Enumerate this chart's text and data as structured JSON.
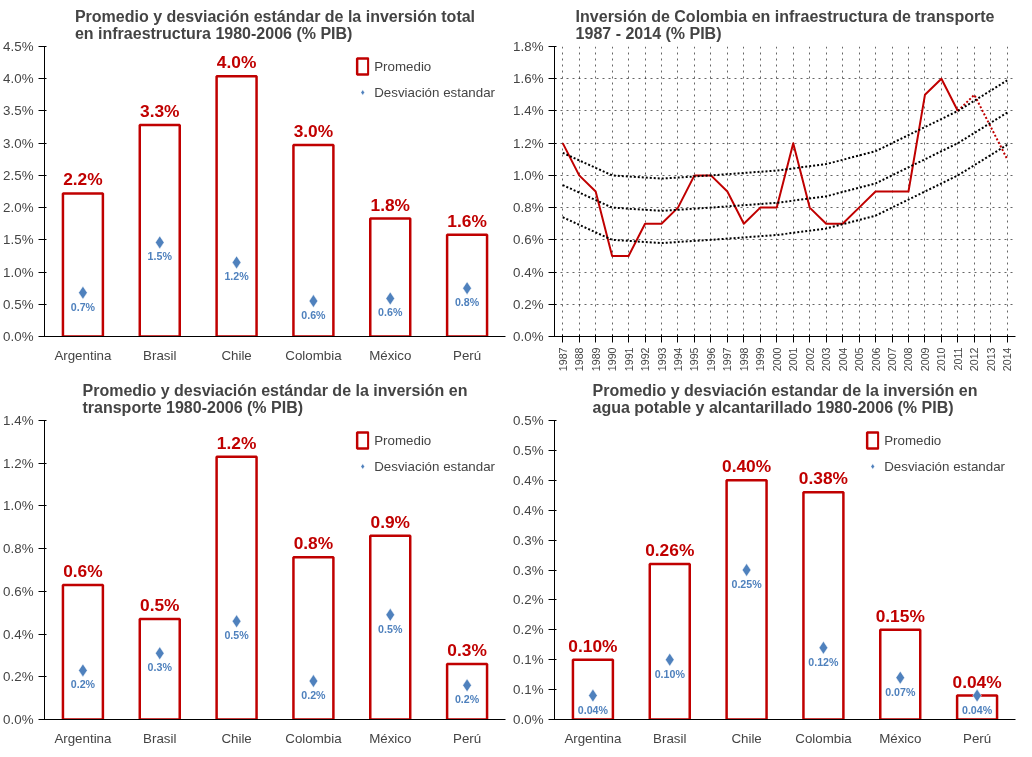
{
  "chart_data": [
    {
      "type": "bar",
      "title": "Promedio y desviación estándar de la inversión total\nen infraestructura 1980-2006 (% PIB)",
      "categories": [
        "Argentina",
        "Brasil",
        "Chile",
        "Colombia",
        "México",
        "Perú"
      ],
      "ylim": [
        0,
        4.5
      ],
      "yticks": [
        {
          "value": 0,
          "label": "0.0%"
        },
        {
          "value": 0.5,
          "label": "0.5%"
        },
        {
          "value": 1,
          "label": "1.0%"
        },
        {
          "value": 1.5,
          "label": "1.5%"
        },
        {
          "value": 2,
          "label": "2.0%"
        },
        {
          "value": 2.5,
          "label": "2.5%"
        },
        {
          "value": 3,
          "label": "3.0%"
        },
        {
          "value": 3.5,
          "label": "3.5%"
        },
        {
          "value": 4,
          "label": "4.0%"
        },
        {
          "value": 4.5,
          "label": "4.5%"
        }
      ],
      "legend": "top right",
      "series": [
        {
          "name": "Promedio",
          "type": "bar",
          "color": "#c00000",
          "values": [
            2.22,
            3.28,
            4.04,
            2.97,
            1.83,
            1.58
          ],
          "value_labels": [
            "2.2%",
            "3.3%",
            "4.0%",
            "3.0%",
            "1.8%",
            "1.6%"
          ]
        },
        {
          "name": "Desviación estandar",
          "type": "scatter",
          "marker": "diamond",
          "color": "#4f81bd",
          "values": [
            0.68,
            1.46,
            1.15,
            0.55,
            0.59,
            0.75
          ],
          "value_labels": [
            "0.7%",
            "1.5%",
            "1.2%",
            "0.6%",
            "0.6%",
            "0.8%"
          ]
        }
      ]
    },
    {
      "type": "line",
      "title": "Inversión de Colombia en infraestructura de transporte\n1987 - 2014 (% PIB)",
      "xlim": [
        1986.5,
        2014.5
      ],
      "xticks": [
        1987,
        1988,
        1989,
        1990,
        1991,
        1992,
        1993,
        1994,
        1995,
        1996,
        1997,
        1998,
        1999,
        2000,
        2001,
        2002,
        2003,
        2004,
        2005,
        2006,
        2007,
        2008,
        2009,
        2010,
        2011,
        2012,
        2013,
        2014
      ],
      "ylim": [
        0,
        1.8
      ],
      "yticks": [
        {
          "value": 0,
          "label": "0.0%"
        },
        {
          "value": 0.2,
          "label": "0.2%"
        },
        {
          "value": 0.4,
          "label": "0.4%"
        },
        {
          "value": 0.6,
          "label": "0.6%"
        },
        {
          "value": 0.8,
          "label": "0.8%"
        },
        {
          "value": 1,
          "label": "1.0%"
        },
        {
          "value": 1.2,
          "label": "1.2%"
        },
        {
          "value": 1.4,
          "label": "1.4%"
        },
        {
          "value": 1.6,
          "label": "1.6%"
        },
        {
          "value": 1.8,
          "label": "1.8%"
        }
      ],
      "grid": true,
      "series": [
        {
          "color": "#c00000",
          "line_style": "solid",
          "x": [
            1987,
            1988,
            1989,
            1990,
            1991,
            1992,
            1993,
            1994,
            1995,
            1996,
            1997,
            1998,
            1999,
            2000,
            2001,
            2002,
            2003,
            2004,
            2005,
            2006,
            2007,
            2008,
            2009,
            2010,
            2011
          ],
          "values": [
            1.2,
            1.0,
            0.9,
            0.5,
            0.5,
            0.7,
            0.7,
            0.8,
            1.0,
            1.0,
            0.9,
            0.7,
            0.8,
            0.8,
            1.2,
            0.8,
            0.7,
            0.7,
            0.8,
            0.9,
            0.9,
            0.9,
            1.5,
            1.6,
            1.4
          ]
        },
        {
          "color": "#c00000",
          "line_style": "dotted",
          "x": [
            2011,
            2012,
            2013,
            2014
          ],
          "values": [
            1.4,
            1.5,
            1.3,
            1.1
          ]
        },
        {
          "color": "#000000",
          "line_style": "dotted",
          "x": [
            1987,
            1990,
            1993,
            1996,
            2000,
            2003,
            2006,
            2009,
            2011,
            2014
          ],
          "values": [
            1.14,
            1.0,
            0.98,
            1.0,
            1.03,
            1.07,
            1.15,
            1.3,
            1.4,
            1.59
          ]
        },
        {
          "color": "#000000",
          "line_style": "dotted",
          "x": [
            1987,
            1990,
            1993,
            1996,
            2000,
            2003,
            2006,
            2009,
            2011,
            2014
          ],
          "values": [
            0.94,
            0.8,
            0.78,
            0.8,
            0.83,
            0.87,
            0.95,
            1.1,
            1.2,
            1.39
          ]
        },
        {
          "color": "#000000",
          "line_style": "dotted",
          "x": [
            1987,
            1990,
            1993,
            1996,
            2000,
            2003,
            2006,
            2009,
            2011,
            2014
          ],
          "values": [
            0.74,
            0.6,
            0.58,
            0.6,
            0.63,
            0.67,
            0.75,
            0.9,
            1.0,
            1.19
          ]
        }
      ]
    },
    {
      "type": "bar",
      "title": "Promedio y desviación estándar de la inversión en\ntransporte 1980-2006 (% PIB)",
      "categories": [
        "Argentina",
        "Brasil",
        "Chile",
        "Colombia",
        "México",
        "Perú"
      ],
      "ylim": [
        0,
        1.4
      ],
      "yticks": [
        {
          "value": 0,
          "label": "0.0%"
        },
        {
          "value": 0.2,
          "label": "0.2%"
        },
        {
          "value": 0.4,
          "label": "0.4%"
        },
        {
          "value": 0.6,
          "label": "0.6%"
        },
        {
          "value": 0.8,
          "label": "0.8%"
        },
        {
          "value": 1,
          "label": "1.0%"
        },
        {
          "value": 1.2,
          "label": "1.2%"
        },
        {
          "value": 1.4,
          "label": "1.4%"
        }
      ],
      "legend": "top right",
      "series": [
        {
          "name": "Promedio",
          "type": "bar",
          "color": "#c00000",
          "values": [
            0.63,
            0.47,
            1.23,
            0.76,
            0.86,
            0.26
          ],
          "value_labels": [
            "0.6%",
            "0.5%",
            "1.2%",
            "0.8%",
            "0.9%",
            "0.3%"
          ]
        },
        {
          "name": "Desviación estandar",
          "type": "scatter",
          "marker": "diamond",
          "color": "#4f81bd",
          "values": [
            0.23,
            0.31,
            0.46,
            0.18,
            0.49,
            0.16
          ],
          "value_labels": [
            "0.2%",
            "0.3%",
            "0.5%",
            "0.2%",
            "0.5%",
            "0.2%"
          ]
        }
      ]
    },
    {
      "type": "bar",
      "title": "Promedio y desviación estandar de la inversión en\nagua potable y alcantarillado 1980-2006 (% PIB)",
      "categories": [
        "Argentina",
        "Brasil",
        "Chile",
        "Colombia",
        "México",
        "Perú"
      ],
      "ylim": [
        0,
        0.5
      ],
      "yticks": [
        {
          "value": 0,
          "label": "0.0%"
        },
        {
          "value": 0.05,
          "label": "0.1%"
        },
        {
          "value": 0.1,
          "label": "0.1%"
        },
        {
          "value": 0.15,
          "label": "0.2%"
        },
        {
          "value": 0.2,
          "label": "0.2%"
        },
        {
          "value": 0.25,
          "label": "0.3%"
        },
        {
          "value": 0.3,
          "label": "0.3%"
        },
        {
          "value": 0.35,
          "label": "0.4%"
        },
        {
          "value": 0.4,
          "label": "0.4%"
        },
        {
          "value": 0.45,
          "label": "0.5%"
        },
        {
          "value": 0.5,
          "label": "0.5%"
        }
      ],
      "legend": "top right",
      "series": [
        {
          "name": "Promedio",
          "type": "bar",
          "color": "#c00000",
          "values": [
            0.1,
            0.26,
            0.4,
            0.38,
            0.15,
            0.04
          ],
          "value_labels": [
            "0.10%",
            "0.26%",
            "0.40%",
            "0.38%",
            "0.15%",
            "0.04%"
          ]
        },
        {
          "name": "Desviación estandar",
          "type": "scatter",
          "marker": "diamond",
          "color": "#4f81bd",
          "values": [
            0.04,
            0.1,
            0.25,
            0.12,
            0.07,
            0.04
          ],
          "value_labels": [
            "0.04%",
            "0.10%",
            "0.25%",
            "0.12%",
            "0.07%",
            "0.04%"
          ]
        }
      ]
    }
  ]
}
